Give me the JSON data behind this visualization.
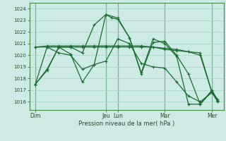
{
  "title": "",
  "xlabel": "Pression niveau de la mer( hPa )",
  "background_color": "#ceeae4",
  "grid_color": "#aacfc8",
  "line_color": "#1a6b30",
  "ylim": [
    1015.3,
    1024.5
  ],
  "xlim": [
    0,
    16.5
  ],
  "xtick_labels": [
    "Dim",
    "Jeu",
    "Lun",
    "Mar",
    "Mer"
  ],
  "xtick_positions": [
    0.5,
    6.5,
    7.5,
    11.5,
    15.5
  ],
  "ytick_values": [
    1016,
    1017,
    1018,
    1019,
    1020,
    1021,
    1022,
    1023,
    1024
  ],
  "series": [
    {
      "x": [
        0.5,
        1.5,
        2.5,
        3.5,
        4.5,
        5.5,
        6.5,
        7.0,
        7.5,
        8.5,
        9.5,
        10.5,
        11.5,
        12.5,
        13.5,
        14.5,
        15.5,
        16.0
      ],
      "y": [
        1017.5,
        1018.8,
        1020.7,
        1020.7,
        1020.2,
        1022.6,
        1023.5,
        1023.2,
        1023.1,
        1021.5,
        1018.4,
        1021.1,
        1021.2,
        1020.0,
        1018.4,
        1015.8,
        1016.9,
        1016.1
      ]
    },
    {
      "x": [
        0.5,
        1.5,
        2.5,
        3.5,
        4.5,
        5.5,
        6.5,
        7.5,
        8.5,
        9.5,
        10.5,
        11.5,
        12.5,
        13.5,
        14.5,
        15.5,
        16.0
      ],
      "y": [
        1020.7,
        1020.7,
        1020.7,
        1020.7,
        1020.7,
        1020.7,
        1020.7,
        1020.7,
        1020.7,
        1020.7,
        1020.7,
        1020.5,
        1020.4,
        1020.3,
        1020.2,
        1016.8,
        1016.0
      ]
    },
    {
      "x": [
        0.5,
        1.5,
        2.5,
        3.5,
        4.5,
        5.5,
        6.5,
        7.5,
        8.5,
        9.5,
        10.5,
        11.5,
        12.5,
        13.5,
        14.5,
        15.5,
        16.0
      ],
      "y": [
        1020.7,
        1020.8,
        1020.8,
        1020.8,
        1020.8,
        1020.8,
        1020.8,
        1020.8,
        1020.8,
        1020.8,
        1020.7,
        1020.6,
        1020.5,
        1020.3,
        1020.0,
        1016.8,
        1016.0
      ]
    },
    {
      "x": [
        0.5,
        1.5,
        2.5,
        3.5,
        4.5,
        5.5,
        6.5,
        7.5,
        8.5,
        9.5,
        10.5,
        11.5,
        12.5,
        13.5,
        14.5,
        15.5,
        16.0
      ],
      "y": [
        1017.5,
        1020.7,
        1020.2,
        1020.0,
        1018.8,
        1019.2,
        1019.5,
        1021.4,
        1021.0,
        1019.3,
        1019.0,
        1018.9,
        1017.7,
        1016.5,
        1016.0,
        1016.8,
        1016.2
      ]
    },
    {
      "x": [
        0.5,
        1.5,
        2.5,
        3.5,
        4.5,
        5.5,
        6.5,
        7.5,
        8.5,
        9.5,
        10.5,
        11.5,
        12.5,
        13.5,
        14.5,
        15.5,
        16.0
      ],
      "y": [
        1017.5,
        1018.7,
        1020.7,
        1020.1,
        1017.7,
        1019.2,
        1023.5,
        1023.2,
        1021.5,
        1018.5,
        1021.4,
        1021.0,
        1019.9,
        1015.8,
        1015.8,
        1017.0,
        1016.1
      ]
    }
  ],
  "vlines_x": [
    0.5,
    6.5,
    7.5,
    11.5,
    15.5
  ],
  "vline_color": "#1a6b30"
}
